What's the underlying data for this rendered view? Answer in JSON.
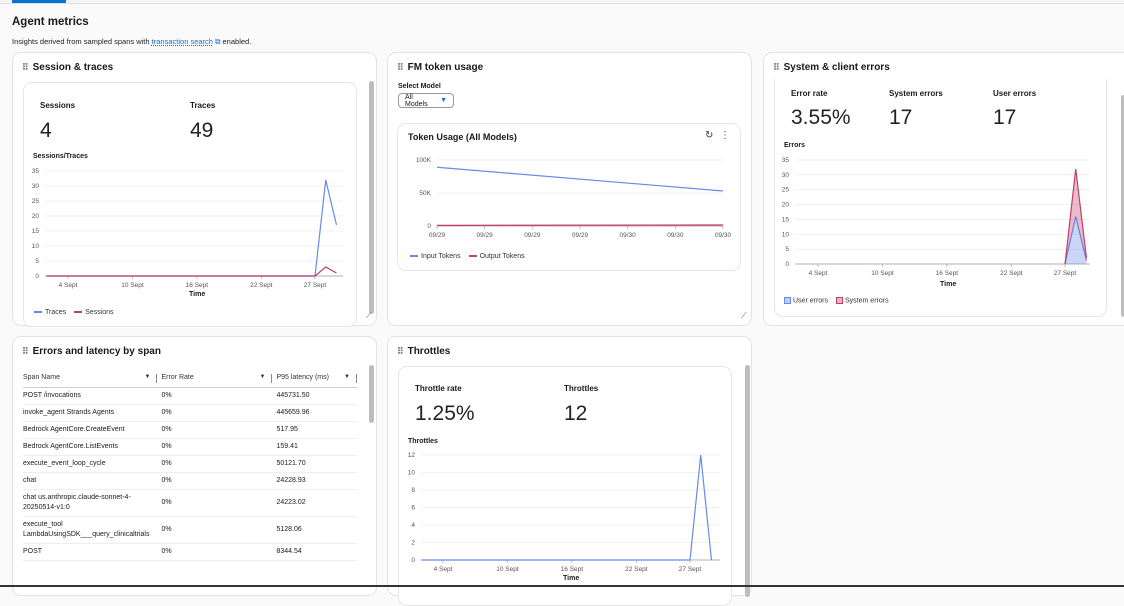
{
  "page": {
    "title": "Agent metrics",
    "subtitle_pre": "Insights derived from sampled spans with",
    "link": "transaction search",
    "subtitle_post": "enabled.",
    "accent": "#0972d3"
  },
  "sessions_card": {
    "title": "Session & traces",
    "kpis": [
      {
        "label": "Sessions",
        "value": "4"
      },
      {
        "label": "Traces",
        "value": "49"
      }
    ]
  },
  "token_card": {
    "title": "FM token usage",
    "select_label": "Select Model",
    "select_value": "All Models",
    "chart_title": "Token Usage (All Models)",
    "icons": [
      "refresh-icon",
      "more-vertical-icon"
    ]
  },
  "errors_card": {
    "title": "System & client errors",
    "kpis": [
      {
        "label": "Error rate",
        "value": "3.55%"
      },
      {
        "label": "System errors",
        "value": "17"
      },
      {
        "label": "User errors",
        "value": "17"
      }
    ]
  },
  "latency_card": {
    "title": "Errors and latency by span",
    "columns": [
      "Span Name",
      "Error Rate",
      "P95 latency (ms)"
    ],
    "rows": [
      [
        "POST /invocations",
        "0%",
        "445731.50"
      ],
      [
        "invoke_agent Strands Agents",
        "0%",
        "445659.96"
      ],
      [
        "Bedrock AgentCore.CreateEvent",
        "0%",
        "517.95"
      ],
      [
        "Bedrock AgentCore.ListEvents",
        "0%",
        "159.41"
      ],
      [
        "execute_event_loop_cycle",
        "0%",
        "50121.70"
      ],
      [
        "chat",
        "0%",
        "24228.93"
      ],
      [
        "chat us.anthropic.claude-sonnet-4-20250514-v1:0",
        "0%",
        "24223.02"
      ],
      [
        "execute_tool LambdaUsingSDK___query_clinicaltrials",
        "0%",
        "5128.06"
      ],
      [
        "POST",
        "0%",
        "8344.54"
      ]
    ]
  },
  "throttles_card": {
    "title": "Throttles",
    "kpis": [
      {
        "label": "Throttle rate",
        "value": "1.25%"
      },
      {
        "label": "Throttles",
        "value": "12"
      }
    ]
  },
  "chart_data": [
    {
      "id": "sessions",
      "type": "line",
      "title": "Sessions/Traces",
      "xlabel": "Time",
      "ylabel": "",
      "ylim": [
        0,
        35
      ],
      "yticks": [
        0,
        5,
        10,
        15,
        20,
        25,
        30,
        35
      ],
      "xticks": [
        "4 Sept",
        "10 Sept",
        "16 Sept",
        "22 Sept",
        "27 Sept"
      ],
      "grid": true,
      "legend": "bottom-left",
      "series": [
        {
          "name": "Traces",
          "color": "#688ae8",
          "x": [
            "2 Sept",
            "27 Sept",
            "28 Sept",
            "29 Sept"
          ],
          "y": [
            0,
            0,
            32,
            17
          ]
        },
        {
          "name": "Sessions",
          "color": "#c33d69",
          "x": [
            "2 Sept",
            "27 Sept",
            "28 Sept",
            "29 Sept"
          ],
          "y": [
            0,
            0,
            3,
            1
          ]
        }
      ]
    },
    {
      "id": "tokens",
      "type": "line",
      "title": "Token Usage (All Models)",
      "ylim": [
        0,
        100000
      ],
      "yticks": [
        0,
        50000,
        100000
      ],
      "ytick_labels": [
        "0",
        "50K",
        "100K"
      ],
      "xticks": [
        "09/29",
        "09/29",
        "09/29",
        "09/29",
        "09/30",
        "09/30",
        "09/30"
      ],
      "grid": true,
      "legend": "bottom-left",
      "series": [
        {
          "name": "Input Tokens",
          "color": "#688ae8",
          "x": [
            0,
            6
          ],
          "y": [
            89000,
            53000
          ]
        },
        {
          "name": "Output Tokens",
          "color": "#c33d69",
          "x": [
            0,
            6
          ],
          "y": [
            1000,
            1500
          ]
        }
      ]
    },
    {
      "id": "errors",
      "type": "area",
      "stacked": true,
      "title": "Errors",
      "xlabel": "Time",
      "ylim": [
        0,
        35
      ],
      "yticks": [
        0,
        5,
        10,
        15,
        20,
        25,
        30,
        35
      ],
      "xticks": [
        "4 Sept",
        "10 Sept",
        "16 Sept",
        "22 Sept",
        "27 Sept"
      ],
      "grid": true,
      "legend": "bottom-left",
      "series": [
        {
          "name": "User errors",
          "color": "#688ae8",
          "x": [
            "27 Sept",
            "28 Sept",
            "29 Sept"
          ],
          "y": [
            0,
            16,
            1
          ]
        },
        {
          "name": "System errors",
          "color": "#c33d69",
          "x": [
            "27 Sept",
            "28 Sept",
            "29 Sept"
          ],
          "y": [
            0,
            16,
            1
          ]
        }
      ]
    },
    {
      "id": "throttles",
      "type": "line",
      "title": "Throttles",
      "xlabel": "Time",
      "ylim": [
        0,
        12
      ],
      "yticks": [
        0,
        2,
        4,
        6,
        8,
        10,
        12
      ],
      "xticks": [
        "4 Sept",
        "10 Sept",
        "16 Sept",
        "22 Sept",
        "27 Sept"
      ],
      "grid": true,
      "series": [
        {
          "color": "#688ae8",
          "x": [
            "2 Sept",
            "27 Sept",
            "28 Sept",
            "29 Sept"
          ],
          "y": [
            0,
            0,
            12,
            0
          ]
        }
      ]
    }
  ]
}
